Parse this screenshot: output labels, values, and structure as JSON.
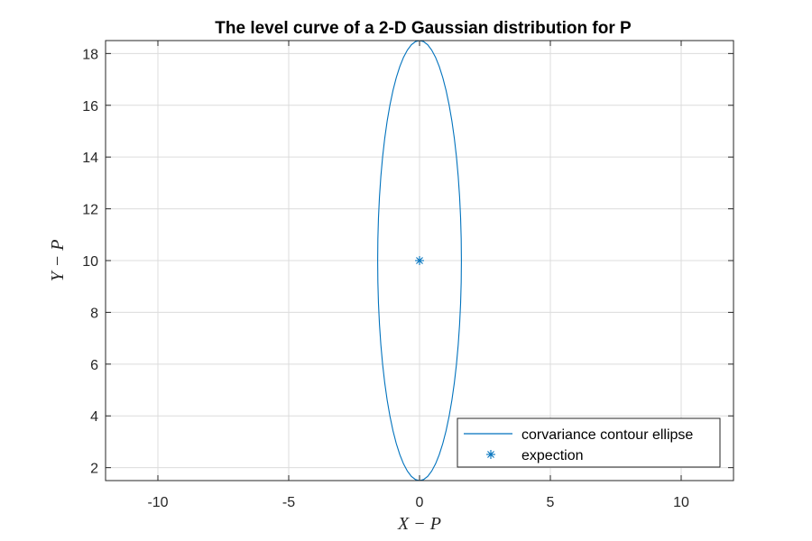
{
  "chart_data": {
    "type": "line",
    "title": "The level curve of a 2-D Gaussian distribution for P",
    "xlabel": "X − P",
    "ylabel": "Y − P",
    "xlim": [
      -12,
      12
    ],
    "ylim": [
      1.5,
      18.5
    ],
    "xticks": [
      -10,
      -5,
      0,
      5,
      10
    ],
    "yticks": [
      2,
      4,
      6,
      8,
      10,
      12,
      14,
      16,
      18
    ],
    "grid": true,
    "legend_location": "bottom-right",
    "series": [
      {
        "name": "corvariance contour ellipse",
        "kind": "ellipse",
        "center": [
          0,
          10
        ],
        "semi_axis_x": 1.6,
        "semi_axis_y": 8.5,
        "color": "#0072BD"
      },
      {
        "name": "expection",
        "kind": "point",
        "x": [
          0
        ],
        "y": [
          10
        ],
        "marker": "asterisk",
        "color": "#0072BD"
      }
    ]
  }
}
